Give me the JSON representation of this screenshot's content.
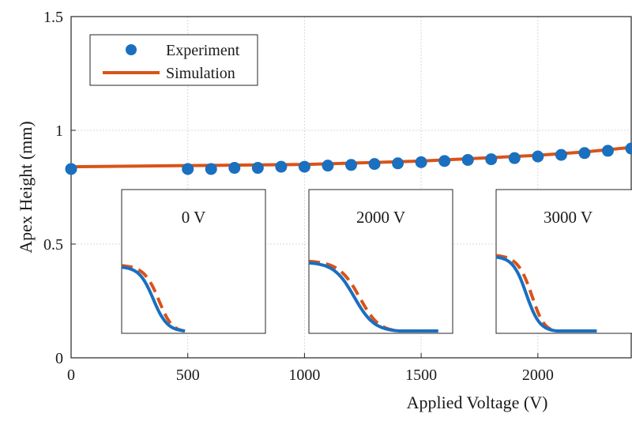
{
  "chart_data": {
    "type": "scatter",
    "xlabel": "Applied Voltage (V)",
    "ylabel": "Apex Height (mm)",
    "xlim": [
      0,
      2400
    ],
    "ylim": [
      0,
      1.5
    ],
    "x_ticks": [
      0,
      500,
      1000,
      1500,
      2000
    ],
    "x_tick_labels": [
      "0",
      "500",
      "1000",
      "1500",
      "2000"
    ],
    "y_ticks": [
      0,
      0.5,
      1,
      1.5
    ],
    "y_tick_labels": [
      "0",
      "0.5",
      "1",
      "1.5"
    ],
    "grid": true,
    "legend": {
      "placement": "top-left",
      "entries": [
        "Experiment",
        "Simulation"
      ]
    },
    "series": [
      {
        "name": "Experiment",
        "style": "markers",
        "color": "#1a6fbf",
        "x": [
          0,
          500,
          600,
          700,
          800,
          900,
          1000,
          1100,
          1200,
          1300,
          1400,
          1500,
          1600,
          1700,
          1800,
          1900,
          2000,
          2100,
          2200,
          2300,
          2400
        ],
        "y": [
          0.83,
          0.83,
          0.83,
          0.835,
          0.835,
          0.84,
          0.84,
          0.845,
          0.848,
          0.852,
          0.855,
          0.86,
          0.865,
          0.87,
          0.873,
          0.878,
          0.885,
          0.892,
          0.9,
          0.91,
          0.92
        ]
      },
      {
        "name": "Simulation",
        "style": "line",
        "color": "#d95319",
        "x": [
          0,
          500,
          1000,
          1500,
          2000,
          2200,
          2400
        ],
        "y": [
          0.84,
          0.845,
          0.85,
          0.865,
          0.89,
          0.905,
          0.925
        ]
      }
    ],
    "insets": [
      {
        "label": "0 V"
      },
      {
        "label": "2000 V"
      },
      {
        "label": "3000 V"
      }
    ]
  }
}
